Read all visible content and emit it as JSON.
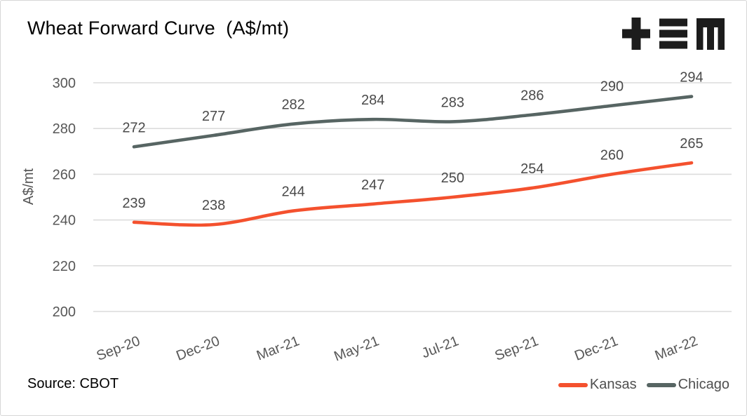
{
  "title": "Wheat Forward Curve  (A$/mt)",
  "source": "Source: CBOT",
  "logo": {
    "name": "tem-logo",
    "color": "#1c1c1c"
  },
  "axis": {
    "y_title": "A$/mt"
  },
  "chart_data": {
    "type": "line",
    "title": "Wheat Forward Curve (A$/mt)",
    "categories": [
      "Sep-20",
      "Dec-20",
      "Mar-21",
      "May-21",
      "Jul-21",
      "Sep-21",
      "Dec-21",
      "Mar-22"
    ],
    "series": [
      {
        "name": "Kansas",
        "color": "#f4512e",
        "values": [
          239,
          238,
          244,
          247,
          250,
          254,
          260,
          265
        ]
      },
      {
        "name": "Chicago",
        "color": "#576563",
        "values": [
          272,
          277,
          282,
          284,
          283,
          286,
          290,
          294
        ]
      }
    ],
    "ylabel": "A$/mt",
    "xlabel": "",
    "yticks": [
      200,
      220,
      240,
      260,
      280,
      300
    ],
    "ylim": [
      200,
      300
    ],
    "grid": true,
    "data_labels": true,
    "legend_position": "bottom-right",
    "colors": {
      "gridline": "#dcdcdc",
      "tick_label": "#575757",
      "data_label": "#4a4a4a"
    }
  }
}
